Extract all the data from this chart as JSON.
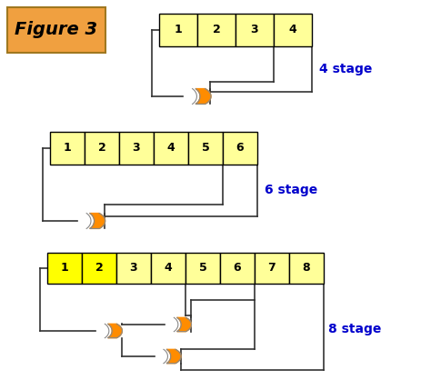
{
  "figure_label": "Figure 3",
  "figure_label_bg": "#F0A040",
  "figure_label_fg": "#000000",
  "stage_label_color": "#0000CC",
  "box_fill": "#FFFF99",
  "box_fill_bright": "#FFFF00",
  "box_edge": "#000000",
  "wire_color": "#333333",
  "xor_fill": "#FF8C00",
  "xor_edge": "#888888",
  "bg_color": "#FFFFFF",
  "circuits": [
    {
      "label": "4 stage"
    },
    {
      "label": "6 stage"
    },
    {
      "label": "8 stage"
    }
  ]
}
